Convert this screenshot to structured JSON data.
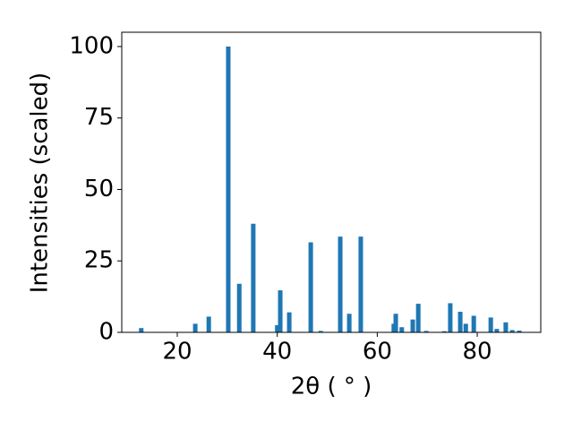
{
  "chart_data": {
    "type": "bar",
    "xlabel": "2θ ( ° )",
    "ylabel": "Intensities (scaled)",
    "x": [
      12.8,
      23.6,
      26.3,
      30.2,
      32.4,
      35.2,
      40.0,
      40.6,
      42.4,
      46.7,
      48.7,
      52.6,
      54.4,
      56.7,
      63.3,
      63.7,
      64.9,
      67.1,
      68.2,
      69.8,
      73.4,
      74.6,
      76.6,
      77.7,
      79.3,
      82.7,
      83.9,
      85.7,
      87.0,
      88.4
    ],
    "values": [
      1.5,
      3,
      5.5,
      100,
      17,
      38,
      2.5,
      14.7,
      7,
      31.5,
      0.5,
      33.5,
      6.5,
      33.5,
      3,
      6.5,
      1.8,
      4.5,
      10,
      0.5,
      0.4,
      10.2,
      7.2,
      3,
      5.8,
      5.2,
      1.2,
      3.5,
      0.8,
      0.6
    ],
    "color": "#1f77b4",
    "xlim": [
      8.9,
      92.7
    ],
    "xticks": [
      20,
      40,
      60,
      80
    ],
    "ylim": [
      0,
      105
    ],
    "yticks": [
      0,
      25,
      50,
      75,
      100
    ]
  }
}
